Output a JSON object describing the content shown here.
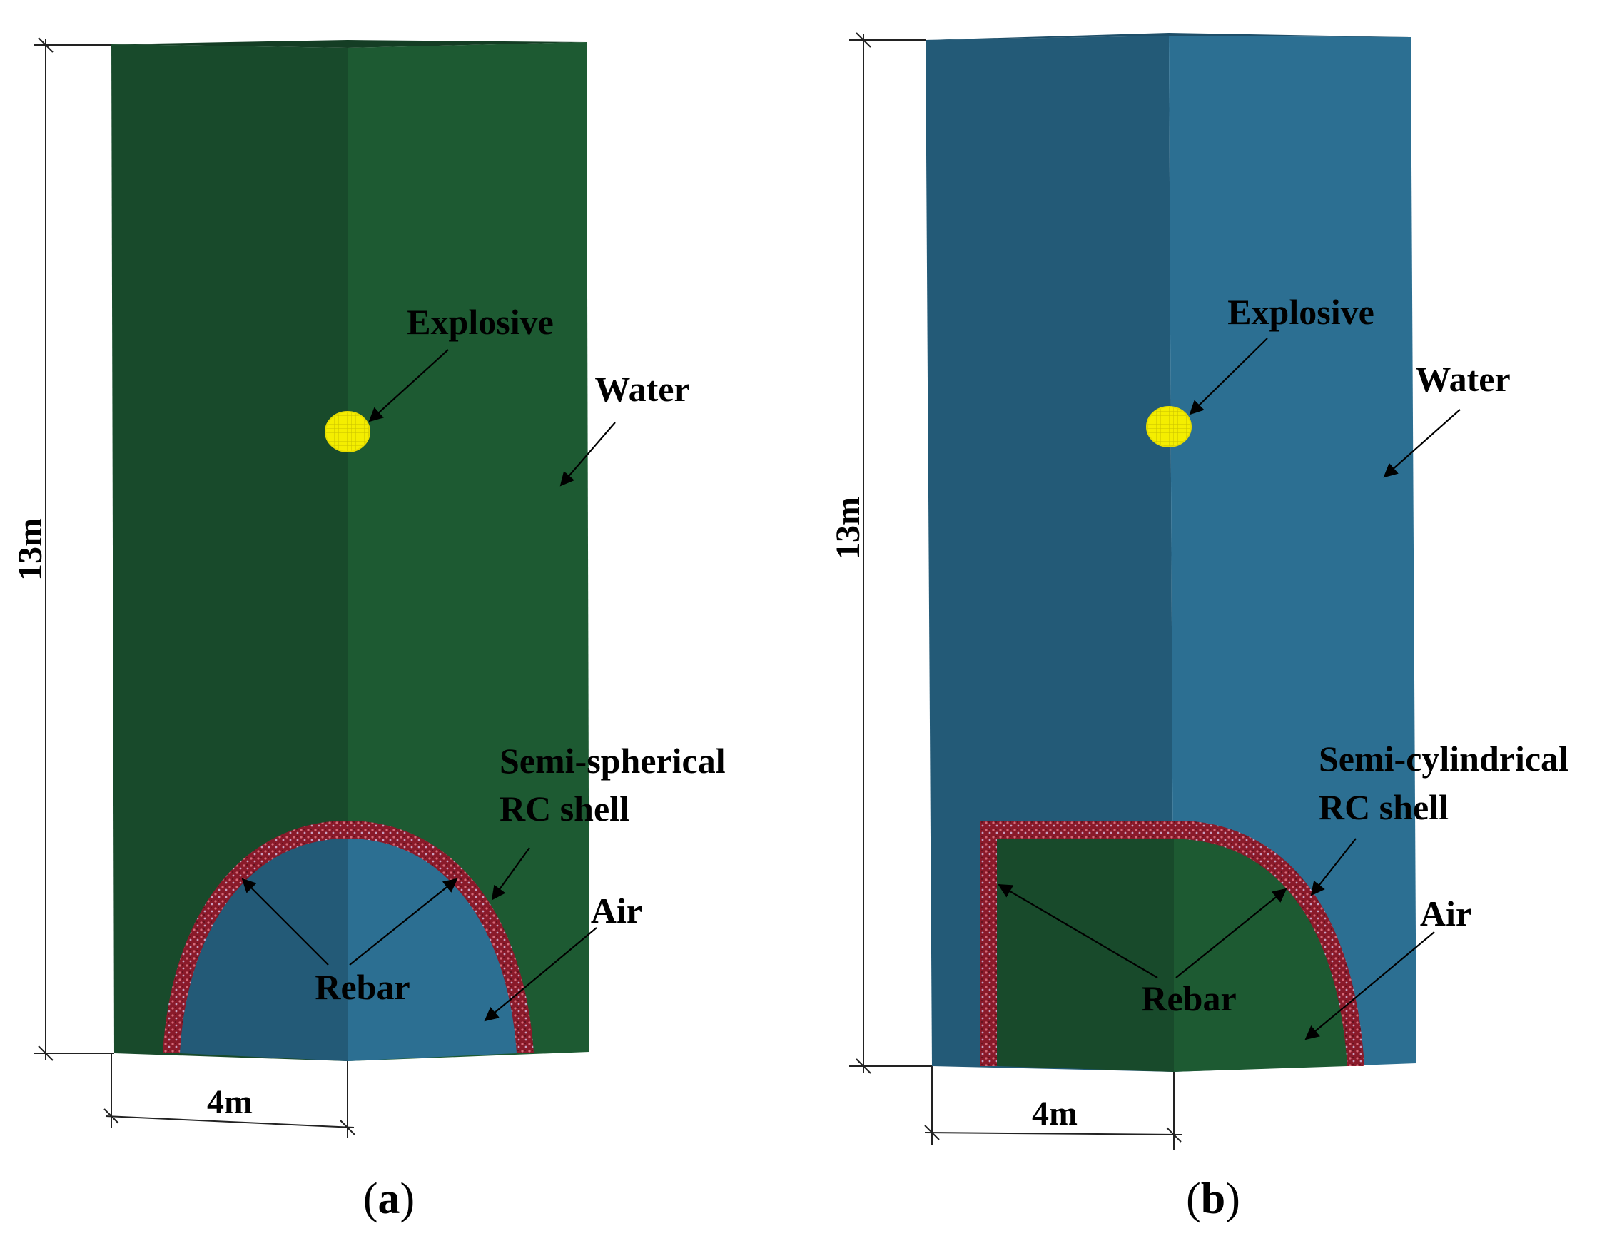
{
  "panels": [
    {
      "id": "a",
      "caption_open": "(",
      "caption_letter": "a",
      "caption_close": ")",
      "height_label": "13m",
      "width_label": "4m",
      "labels": {
        "explosive": "Explosive",
        "water": "Water",
        "shell_line1": "Semi-spherical",
        "shell_line2": "RC shell",
        "air": "Air",
        "rebar": "Rebar"
      }
    },
    {
      "id": "b",
      "caption_open": "(",
      "caption_letter": "b",
      "caption_close": ")",
      "height_label": "13m",
      "width_label": "4m",
      "labels": {
        "explosive": "Explosive",
        "water": "Water",
        "shell_line1": "Semi-cylindrical",
        "shell_line2": "RC shell",
        "air": "Air",
        "rebar": "Rebar"
      }
    }
  ],
  "colors": {
    "green_dark": "#184a2b",
    "green_light": "#1d5a32",
    "blue_dark": "#235a77",
    "blue_light": "#2c6f92",
    "explosive": "#f4ee00",
    "shell": "#8a1a2a"
  }
}
